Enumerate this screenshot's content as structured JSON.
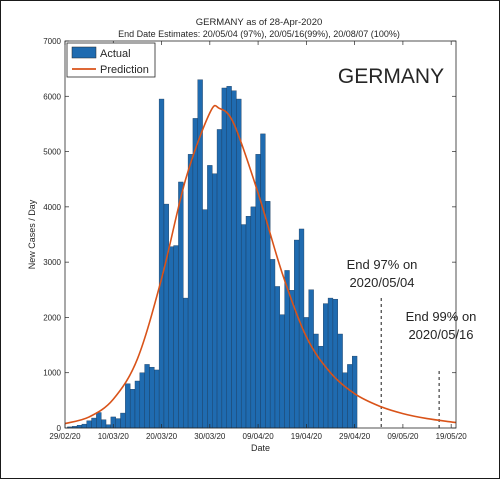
{
  "chart_data": {
    "type": "bar",
    "title": "GERMANY as of 28-Apr-2020",
    "subtitle": "End Date Estimates: 20/05/04 (97%), 20/05/16(99%), 20/08/07 (100%)",
    "xlabel": "Date",
    "ylabel": "New Cases / Day",
    "ylim": [
      0,
      7000
    ],
    "yticks": [
      0,
      1000,
      2000,
      3000,
      4000,
      5000,
      6000,
      7000
    ],
    "x_day_range": [
      0,
      81
    ],
    "xticks": [
      {
        "day": 0,
        "label": "29/02/20"
      },
      {
        "day": 10,
        "label": "10/03/20"
      },
      {
        "day": 20,
        "label": "20/03/20"
      },
      {
        "day": 30,
        "label": "30/03/20"
      },
      {
        "day": 40,
        "label": "09/04/20"
      },
      {
        "day": 50,
        "label": "19/04/20"
      },
      {
        "day": 60,
        "label": "29/04/20"
      },
      {
        "day": 70,
        "label": "09/05/20"
      },
      {
        "day": 80,
        "label": "19/05/20"
      }
    ],
    "grid": false,
    "legend_position": "top-left",
    "big_label": "GERMANY",
    "series": [
      {
        "name": "Actual",
        "color": "#1f6bb0",
        "start_day": 1,
        "values": [
          20,
          30,
          50,
          70,
          130,
          180,
          280,
          150,
          60,
          200,
          170,
          270,
          800,
          700,
          850,
          1000,
          1150,
          1100,
          1050,
          5950,
          4050,
          3280,
          3300,
          4450,
          2350,
          4950,
          5600,
          6300,
          3950,
          4750,
          4600,
          5400,
          6150,
          6180,
          6100,
          5950,
          3680,
          3830,
          4000,
          4950,
          5320,
          4100,
          3050,
          2560,
          2050,
          2850,
          2490,
          3400,
          3600,
          2000,
          2500,
          1700,
          1480,
          2250,
          2350,
          2330,
          1700,
          1000,
          1150,
          1300
        ]
      },
      {
        "name": "Prediction",
        "color": "#d95319",
        "type": "line",
        "days": [
          0,
          5,
          10,
          15,
          20,
          25,
          30,
          32,
          35,
          40,
          45,
          50,
          55,
          60,
          65,
          70,
          75,
          80,
          81
        ],
        "values": [
          80,
          200,
          520,
          1250,
          2700,
          4500,
          5700,
          5780,
          5500,
          4250,
          2800,
          1650,
          1000,
          620,
          400,
          260,
          170,
          110,
          100
        ]
      }
    ],
    "annotations": [
      {
        "day": 65.5,
        "text_lines": [
          "End 97% on",
          "2020/05/04"
        ]
      },
      {
        "day": 77.5,
        "text_lines": [
          "End 99% on",
          "2020/05/16"
        ]
      }
    ]
  }
}
